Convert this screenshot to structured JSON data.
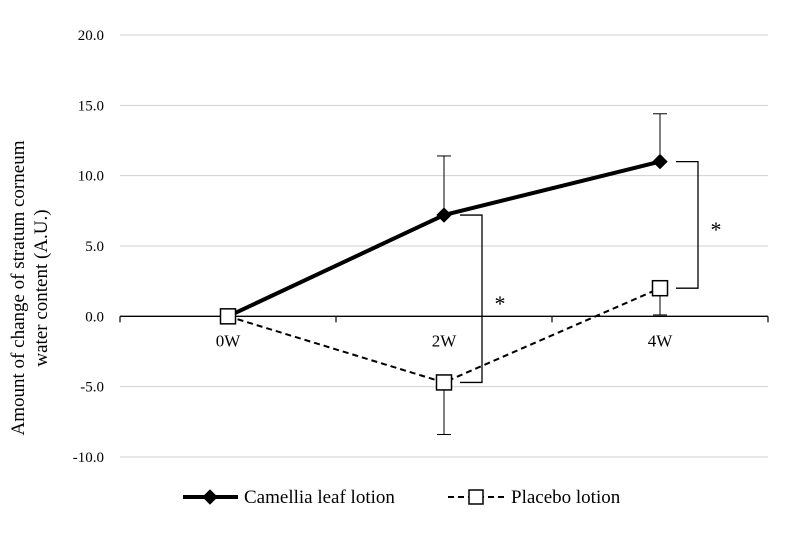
{
  "chart_data": {
    "type": "line",
    "categories": [
      "0W",
      "2W",
      "4W"
    ],
    "ylabel_line1": "Amount of change of stratum corneum",
    "ylabel_line2": "water content (A.U.)",
    "ylim": [
      -10,
      20
    ],
    "yticks": [
      20,
      15,
      10,
      5,
      0,
      -5,
      -10
    ],
    "ytick_labels": [
      "20.0",
      "15.0",
      "10.0",
      "5.0",
      "0.0",
      "-5.0",
      "-10.0"
    ],
    "grid": true,
    "legend_position": "bottom",
    "series": [
      {
        "name": "Camellia leaf lotion",
        "values": [
          0.0,
          7.2,
          11.0
        ],
        "error": [
          0,
          4.2,
          3.4
        ],
        "marker": "diamond",
        "line_style": "solid"
      },
      {
        "name": "Placebo lotion",
        "values": [
          0.0,
          -4.7,
          2.0
        ],
        "error": [
          0,
          3.7,
          1.9
        ],
        "marker": "square-open",
        "line_style": "dashed"
      }
    ],
    "annotations": [
      {
        "category": "2W",
        "text": "*"
      },
      {
        "category": "4W",
        "text": "*"
      }
    ]
  },
  "colors": {
    "grid": "#d0d0d0",
    "axis": "#000000",
    "series": "#000000"
  }
}
